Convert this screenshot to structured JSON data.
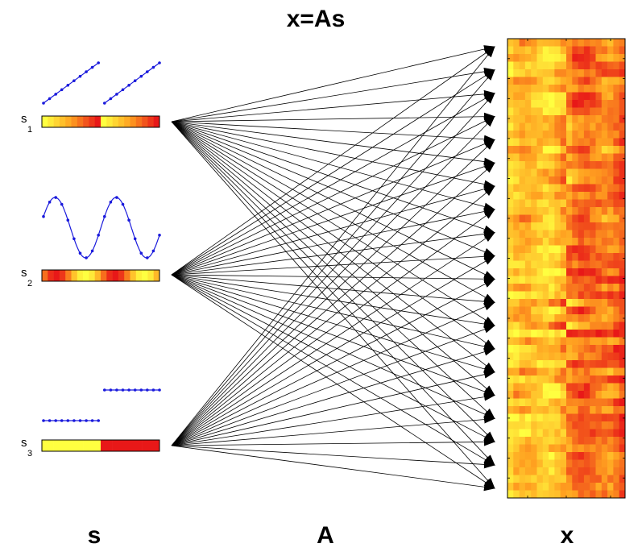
{
  "title": "x=As",
  "labels": {
    "sources": "s",
    "mixing": "A",
    "mixtures": "x"
  },
  "sources": [
    {
      "label": "s",
      "subscript": "1",
      "waveform": "sawtooth"
    },
    {
      "label": "s",
      "subscript": "2",
      "waveform": "sine"
    },
    {
      "label": "s",
      "subscript": "3",
      "waveform": "step"
    }
  ],
  "colors": {
    "signal": "#1a1adc",
    "arrow": "#000000",
    "heat_low": "#ffff40",
    "heat_mid": "#ffa020",
    "heat_high": "#e81818"
  },
  "mixtures_count": 20
}
